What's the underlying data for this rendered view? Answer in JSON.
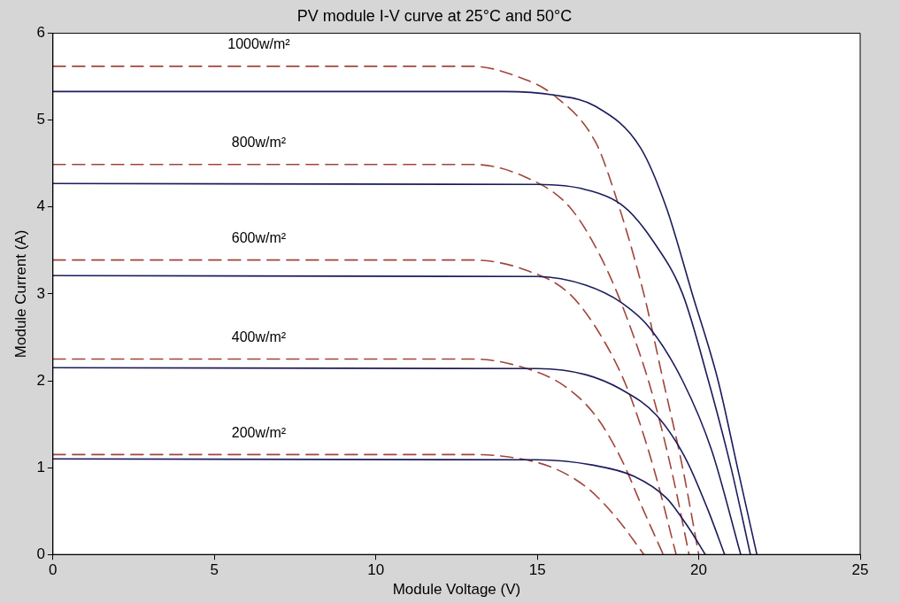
{
  "chart_data": {
    "type": "line",
    "title": "PV module I-V curve at 25°C and 50°C",
    "xlabel": "Module Voltage (V)",
    "ylabel": "Module Current (A)",
    "xlim": [
      0,
      25
    ],
    "xticks": [
      0,
      5,
      10,
      15,
      20,
      25
    ],
    "ylim": [
      0,
      6
    ],
    "yticks": [
      0,
      1,
      2,
      3,
      4,
      5,
      6
    ],
    "grid": false,
    "legend": false,
    "marker": "none",
    "series": [
      {
        "color": "#1c1c5c",
        "line_style": "solid",
        "x": [
          0,
          14,
          15.5,
          16.8,
          18.2,
          19.0,
          19.8,
          20.6,
          21.2,
          21.8
        ],
        "values": [
          5.33,
          5.33,
          5.29,
          5.16,
          4.68,
          3.99,
          3.0,
          2.0,
          1.0,
          0
        ]
      },
      {
        "color": "#1c1c5c",
        "line_style": "solid",
        "x": [
          0,
          15,
          16.5,
          17.7,
          18.6,
          19.5,
          20.3,
          21.0,
          21.6
        ],
        "values": [
          4.27,
          4.26,
          4.2,
          4.0,
          3.6,
          3.0,
          2.0,
          1.0,
          0
        ]
      },
      {
        "color": "#1c1c5c",
        "line_style": "solid",
        "x": [
          0,
          15,
          16.5,
          17.6,
          18.5,
          19.5,
          20.4,
          21.3
        ],
        "values": [
          3.21,
          3.2,
          3.1,
          2.9,
          2.6,
          2.0,
          1.2,
          0
        ]
      },
      {
        "color": "#1c1c5c",
        "line_style": "solid",
        "x": [
          0,
          15,
          16.5,
          17.6,
          18.7,
          19.6,
          20.3,
          20.8
        ],
        "values": [
          2.15,
          2.14,
          2.07,
          1.9,
          1.6,
          1.1,
          0.5,
          0
        ]
      },
      {
        "color": "#1c1c5c",
        "line_style": "solid",
        "x": [
          0,
          15,
          16.7,
          18,
          19,
          19.7,
          20.2
        ],
        "values": [
          1.1,
          1.09,
          1.03,
          0.9,
          0.65,
          0.3,
          0
        ]
      },
      {
        "color": "#a0453c",
        "line_style": "dashed",
        "x": [
          0,
          13,
          14.4,
          15.5,
          16.8,
          17.3,
          18.3,
          18.9,
          19.5,
          20.0
        ],
        "values": [
          5.62,
          5.62,
          5.5,
          5.29,
          4.75,
          4.27,
          3.0,
          2.0,
          1.0,
          0
        ]
      },
      {
        "color": "#a0453c",
        "line_style": "dashed",
        "x": [
          0,
          13,
          14.6,
          16,
          17,
          17.8,
          18.6,
          19.2,
          19.7
        ],
        "values": [
          4.49,
          4.49,
          4.35,
          4.0,
          3.4,
          2.7,
          1.8,
          0.9,
          0
        ]
      },
      {
        "color": "#a0453c",
        "line_style": "dashed",
        "x": [
          0,
          13,
          14.6,
          16,
          17,
          17.8,
          18.6,
          19.3
        ],
        "values": [
          3.39,
          3.39,
          3.28,
          3.0,
          2.5,
          1.9,
          1.0,
          0
        ]
      },
      {
        "color": "#a0453c",
        "line_style": "dashed",
        "x": [
          0,
          13,
          14.5,
          15.8,
          16.8,
          17.6,
          18.3,
          18.9
        ],
        "values": [
          2.25,
          2.25,
          2.16,
          1.95,
          1.6,
          1.1,
          0.5,
          0
        ]
      },
      {
        "color": "#a0453c",
        "line_style": "dashed",
        "x": [
          0,
          13,
          14.5,
          15.6,
          16.6,
          17.5,
          18.3
        ],
        "values": [
          1.15,
          1.15,
          1.1,
          0.98,
          0.75,
          0.4,
          0
        ]
      }
    ],
    "annotations": [
      "1000w/m²",
      "800w/m²",
      "600w/m²",
      "400w/m²",
      "200w/m²"
    ]
  }
}
